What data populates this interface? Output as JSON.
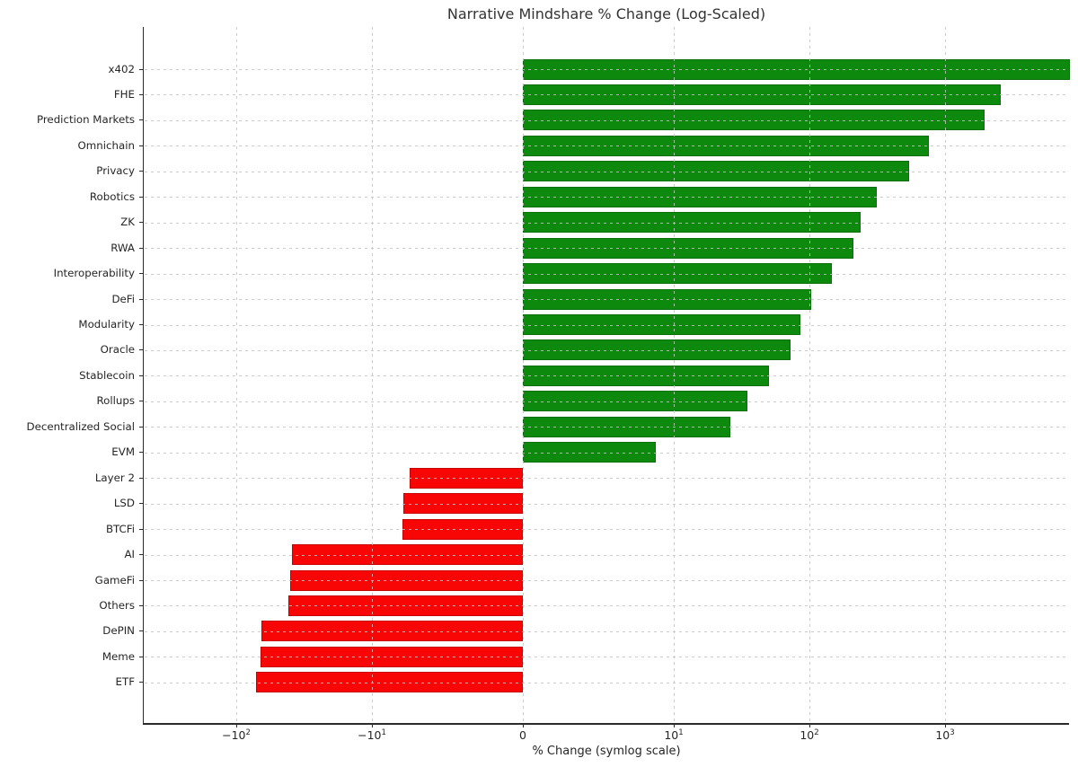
{
  "chart_data": {
    "type": "bar",
    "orientation": "horizontal",
    "title": "Narrative Mindshare % Change (Log-Scaled)",
    "xlabel": "% Change (symlog scale)",
    "ylabel": "",
    "x_scale": "symlog",
    "linthresh": 10,
    "xlim": [
      -480,
      8300
    ],
    "grid": true,
    "legend": false,
    "categories": [
      "x402",
      "FHE",
      "Prediction Markets",
      "Omnichain",
      "Privacy",
      "Robotics",
      "ZK",
      "RWA",
      "Interoperability",
      "DeFi",
      "Modularity",
      "Oracle",
      "Stablecoin",
      "Rollups",
      "Decentralized Social",
      "EVM",
      "Layer 2",
      "LSD",
      "BTCFi",
      "AI",
      "GameFi",
      "Others",
      "DePIN",
      "Meme",
      "ETF"
    ],
    "values": [
      8300,
      2575,
      1950,
      760,
      540,
      315,
      240,
      210,
      147,
      103,
      86,
      73,
      50,
      35,
      26,
      8.8,
      -7.5,
      -7.9,
      -8,
      -39,
      -40,
      -41,
      -65,
      -66,
      -71
    ],
    "positive_color": "#0d8a0d",
    "negative_color": "#f80606",
    "x_ticks": [
      {
        "base": "−10",
        "exp": "2",
        "value": -100
      },
      {
        "base": "−10",
        "exp": "1",
        "value": -10
      },
      {
        "base": "0",
        "exp": "",
        "value": 0
      },
      {
        "base": "10",
        "exp": "1",
        "value": 10
      },
      {
        "base": "10",
        "exp": "2",
        "value": 100
      },
      {
        "base": "10",
        "exp": "3",
        "value": 1000
      }
    ]
  }
}
